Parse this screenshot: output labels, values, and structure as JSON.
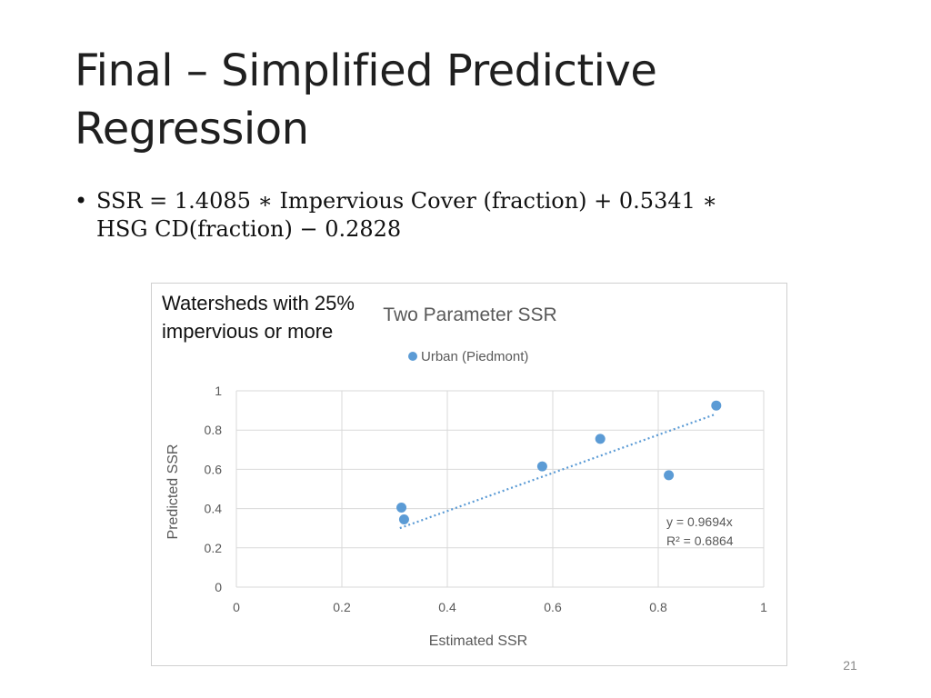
{
  "slide": {
    "title": "Final – Simplified Predictive Regression",
    "bullet_marker": "•",
    "bullet_line1": "SSR = 1.4085 ∗ Impervious Cover (fraction) + 0.5341 ∗",
    "bullet_line2": "HSG CD(fraction) − 0.2828",
    "annotation": "Watersheds with 25% impervious or more",
    "page_number": "21"
  },
  "colors": {
    "series": "#5b9bd5",
    "grid": "#d9d9d9",
    "text": "#595959"
  },
  "chart_data": {
    "type": "scatter",
    "title": "Two Parameter SSR",
    "xlabel": "Estimated SSR",
    "ylabel": "Predicted SSR",
    "xlim": [
      0,
      1
    ],
    "ylim": [
      0,
      1
    ],
    "x_ticks": [
      "0",
      "0.2",
      "0.4",
      "0.6",
      "0.8",
      "1"
    ],
    "y_ticks": [
      "0",
      "0.2",
      "0.4",
      "0.6",
      "0.8",
      "1"
    ],
    "grid": true,
    "legend_position": "top",
    "series": [
      {
        "name": "Urban (Piedmont)",
        "x": [
          0.313,
          0.318,
          0.58,
          0.69,
          0.82,
          0.91
        ],
        "y": [
          0.405,
          0.345,
          0.615,
          0.755,
          0.57,
          0.925
        ]
      }
    ],
    "trendline": {
      "type": "linear-through-origin",
      "slope": 0.9694,
      "x_range": [
        0.31,
        0.91
      ],
      "equation": "y = 0.9694x",
      "r_squared": "R² = 0.6864"
    }
  }
}
